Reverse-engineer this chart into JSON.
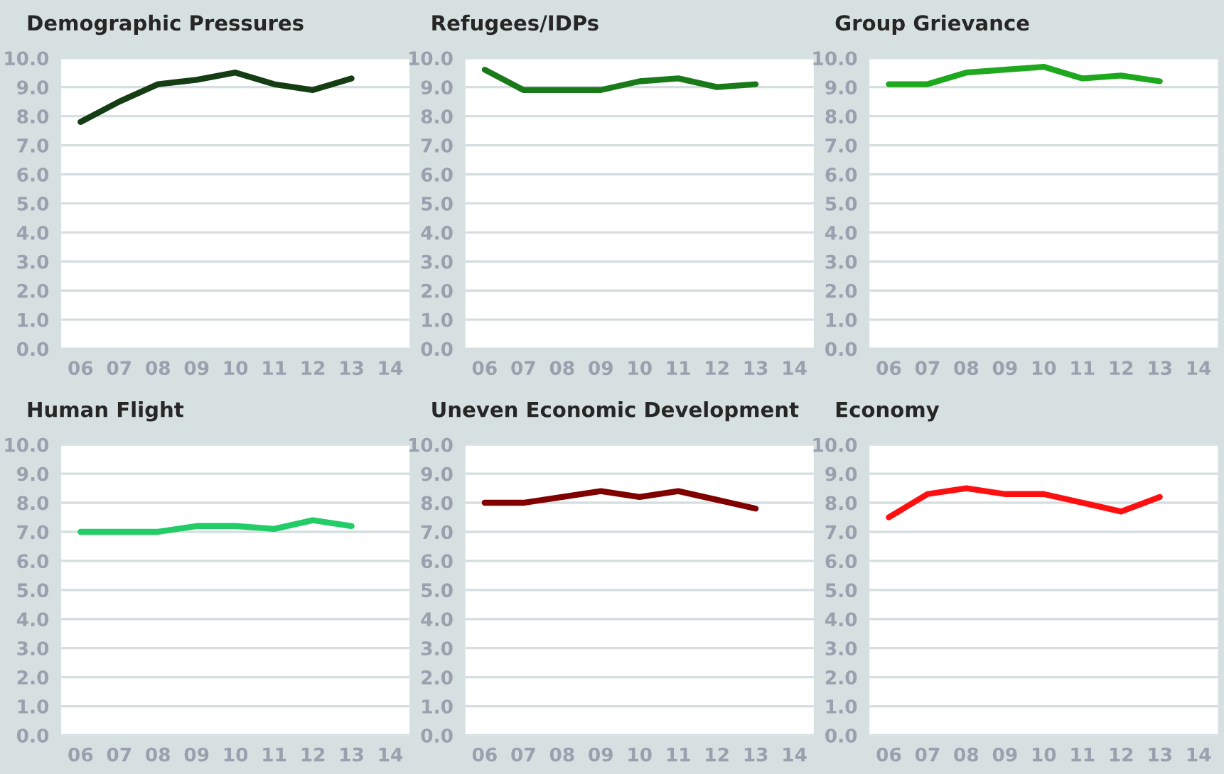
{
  "chart_data": [
    {
      "type": "line",
      "title": "Demographic Pressures",
      "categories": [
        "06",
        "07",
        "08",
        "09",
        "10",
        "11",
        "12",
        "13",
        "14"
      ],
      "series": [
        {
          "color": "#143d14",
          "values": [
            7.8,
            8.5,
            9.1,
            9.25,
            9.5,
            9.1,
            8.9,
            9.3,
            null
          ]
        }
      ],
      "ylim": [
        0,
        10
      ],
      "yticks": [
        {
          "value": 0,
          "label": "0.0"
        },
        {
          "value": 1,
          "label": "1.0"
        },
        {
          "value": 2,
          "label": "2.0"
        },
        {
          "value": 3,
          "label": "3.0"
        },
        {
          "value": 4,
          "label": "4.0"
        },
        {
          "value": 5,
          "label": "5.0"
        },
        {
          "value": 6,
          "label": "6.0"
        },
        {
          "value": 7,
          "label": "7.0"
        },
        {
          "value": 8,
          "label": "8.0"
        },
        {
          "value": 9,
          "label": "9.0"
        },
        {
          "value": 10,
          "label": "10.0"
        }
      ],
      "grid": "y"
    },
    {
      "type": "line",
      "title": "Refugees/IDPs",
      "categories": [
        "06",
        "07",
        "08",
        "09",
        "10",
        "11",
        "12",
        "13",
        "14"
      ],
      "series": [
        {
          "color": "#1a7a1a",
          "values": [
            9.6,
            8.9,
            8.9,
            8.9,
            9.2,
            9.3,
            9.0,
            9.1,
            null
          ]
        }
      ],
      "ylim": [
        0,
        10
      ],
      "yticks": [
        {
          "value": 0,
          "label": "0.0"
        },
        {
          "value": 1,
          "label": "1.0"
        },
        {
          "value": 2,
          "label": "2.0"
        },
        {
          "value": 3,
          "label": "3.0"
        },
        {
          "value": 4,
          "label": "4.0"
        },
        {
          "value": 5,
          "label": "5.0"
        },
        {
          "value": 6,
          "label": "6.0"
        },
        {
          "value": 7,
          "label": "7.0"
        },
        {
          "value": 8,
          "label": "8.0"
        },
        {
          "value": 9,
          "label": "9.0"
        },
        {
          "value": 10,
          "label": "10.0"
        }
      ],
      "grid": "y"
    },
    {
      "type": "line",
      "title": "Group Grievance",
      "categories": [
        "06",
        "07",
        "08",
        "09",
        "10",
        "11",
        "12",
        "13",
        "14"
      ],
      "series": [
        {
          "color": "#1ea81e",
          "values": [
            9.1,
            9.1,
            9.5,
            9.6,
            9.7,
            9.3,
            9.4,
            9.2,
            null
          ]
        }
      ],
      "ylim": [
        0,
        10
      ],
      "yticks": [
        {
          "value": 0,
          "label": "0.0"
        },
        {
          "value": 1,
          "label": "1.0"
        },
        {
          "value": 2,
          "label": "2.0"
        },
        {
          "value": 3,
          "label": "3.0"
        },
        {
          "value": 4,
          "label": "4.0"
        },
        {
          "value": 5,
          "label": "5.0"
        },
        {
          "value": 6,
          "label": "6.0"
        },
        {
          "value": 7,
          "label": "7.0"
        },
        {
          "value": 8,
          "label": "8.0"
        },
        {
          "value": 9,
          "label": "9.0"
        },
        {
          "value": 10,
          "label": "10.0"
        }
      ],
      "grid": "y"
    },
    {
      "type": "line",
      "title": "Human Flight",
      "categories": [
        "06",
        "07",
        "08",
        "09",
        "10",
        "11",
        "12",
        "13",
        "14"
      ],
      "series": [
        {
          "color": "#22cc66",
          "values": [
            7.0,
            7.0,
            7.0,
            7.2,
            7.2,
            7.1,
            7.4,
            7.2,
            null
          ]
        }
      ],
      "ylim": [
        0,
        10
      ],
      "yticks": [
        {
          "value": 0,
          "label": "0.0"
        },
        {
          "value": 1,
          "label": "1.0"
        },
        {
          "value": 2,
          "label": "2.0"
        },
        {
          "value": 3,
          "label": "3.0"
        },
        {
          "value": 4,
          "label": "4.0"
        },
        {
          "value": 5,
          "label": "5.0"
        },
        {
          "value": 6,
          "label": "6.0"
        },
        {
          "value": 7,
          "label": "7.0"
        },
        {
          "value": 8,
          "label": "8.0"
        },
        {
          "value": 9,
          "label": "9.0"
        },
        {
          "value": 10,
          "label": "10.0"
        }
      ],
      "grid": "y"
    },
    {
      "type": "line",
      "title": "Uneven Economic Development",
      "categories": [
        "06",
        "07",
        "08",
        "09",
        "10",
        "11",
        "12",
        "13",
        "14"
      ],
      "series": [
        {
          "color": "#800000",
          "values": [
            8.0,
            8.0,
            8.2,
            8.4,
            8.2,
            8.4,
            8.1,
            7.8,
            null
          ]
        }
      ],
      "ylim": [
        0,
        10
      ],
      "yticks": [
        {
          "value": 0,
          "label": "0.0"
        },
        {
          "value": 1,
          "label": "1.0"
        },
        {
          "value": 2,
          "label": "2.0"
        },
        {
          "value": 3,
          "label": "3.0"
        },
        {
          "value": 4,
          "label": "4.0"
        },
        {
          "value": 5,
          "label": "5.0"
        },
        {
          "value": 6,
          "label": "6.0"
        },
        {
          "value": 7,
          "label": "7.0"
        },
        {
          "value": 8,
          "label": "8.0"
        },
        {
          "value": 9,
          "label": "9.0"
        },
        {
          "value": 10,
          "label": "10.0"
        }
      ],
      "grid": "y"
    },
    {
      "type": "line",
      "title": "Economy",
      "categories": [
        "06",
        "07",
        "08",
        "09",
        "10",
        "11",
        "12",
        "13",
        "14"
      ],
      "series": [
        {
          "color": "#ff1010",
          "values": [
            7.5,
            8.3,
            8.5,
            8.3,
            8.3,
            8.0,
            7.7,
            8.2,
            null
          ]
        }
      ],
      "ylim": [
        0,
        10
      ],
      "yticks": [
        {
          "value": 0,
          "label": "0.0"
        },
        {
          "value": 1,
          "label": "1.0"
        },
        {
          "value": 2,
          "label": "2.0"
        },
        {
          "value": 3,
          "label": "3.0"
        },
        {
          "value": 4,
          "label": "4.0"
        },
        {
          "value": 5,
          "label": "5.0"
        },
        {
          "value": 6,
          "label": "6.0"
        },
        {
          "value": 7,
          "label": "7.0"
        },
        {
          "value": 8,
          "label": "8.0"
        },
        {
          "value": 9,
          "label": "9.0"
        },
        {
          "value": 10,
          "label": "10.0"
        }
      ],
      "grid": "y"
    }
  ]
}
